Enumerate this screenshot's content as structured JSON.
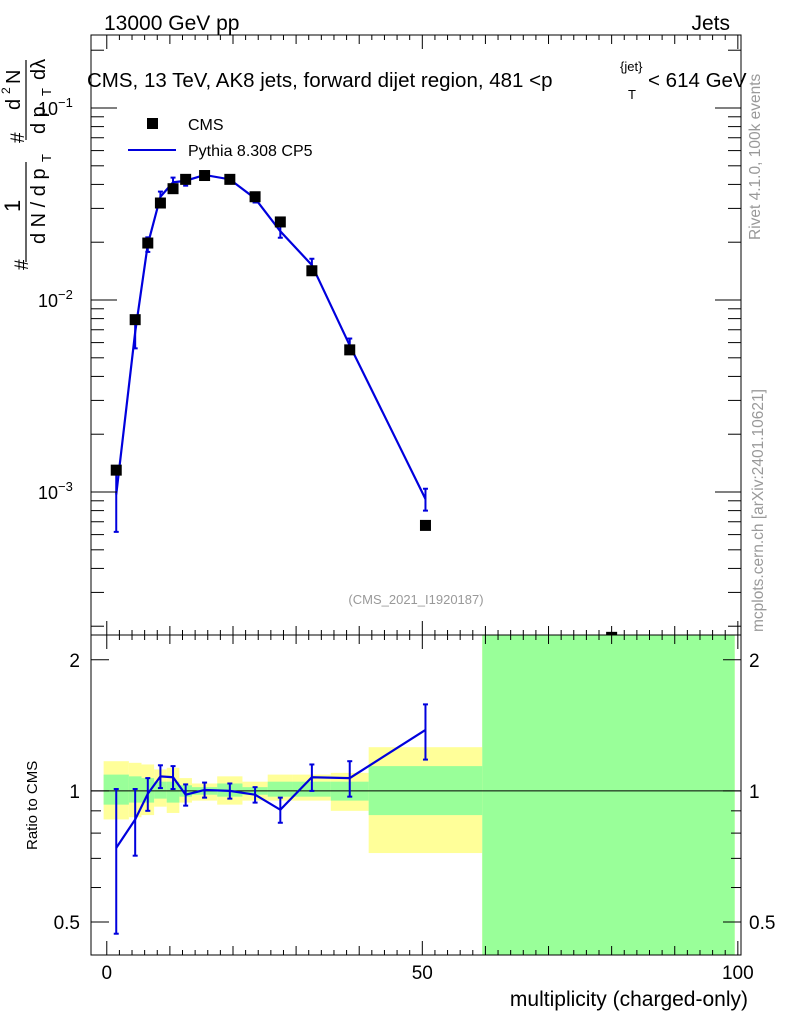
{
  "header": {
    "left": "13000 GeV pp",
    "right": "Jets"
  },
  "side": {
    "rivet": "Rivet 4.1.0,  100k events",
    "mcplots": "mcplots.cern.ch [arXiv:2401.10621]"
  },
  "colors": {
    "mc": "#0000dd",
    "data": "#000000",
    "band_stat": "#99ff99",
    "band_total": "#ffff99"
  },
  "chart_data": [
    {
      "type": "scatter",
      "title": "CMS, 13 TeV, AK8 jets, forward dijet region, 481 <p_T^{jet}< 614 GeV",
      "title_main": "CMS, 13 TeV, AK8 jets, forward dijet region, 481 <p",
      "title_sup": "{jet}",
      "title_sub": "T",
      "title_tail": "< 614 GeV",
      "ylabel_parts": [
        "#",
        "1",
        "d N / d p",
        "T",
        "#",
        "d p",
        "T",
        "d",
        "N",
        "2",
        "dλ"
      ],
      "yscale": "log",
      "ylim": [
        0.00018,
        0.24
      ],
      "xlim": [
        -2.5,
        100.5
      ],
      "yticks": [
        {
          "value": 0.1,
          "base": "10",
          "exp": "−1"
        },
        {
          "value": 0.01,
          "base": "10",
          "exp": "−2"
        },
        {
          "value": 0.001,
          "base": "10",
          "exp": "−3"
        }
      ],
      "watermark": "(CMS_2021_I1920187)",
      "legend": {
        "placement": "top-left",
        "entries": [
          "CMS",
          "Pythia 8.308 CP5"
        ]
      },
      "series": [
        {
          "name": "CMS",
          "style": "markers",
          "x": [
            1.5,
            4.5,
            6.5,
            8.5,
            10.5,
            12.5,
            15.5,
            19.5,
            23.5,
            27.5,
            32.5,
            38.5,
            50.5,
            80
          ],
          "y": [
            0.0013,
            0.0079,
            0.0198,
            0.032,
            0.038,
            0.0425,
            0.0445,
            0.0425,
            0.0345,
            0.0255,
            0.0142,
            0.0055,
            0.00067,
            0.000175
          ]
        },
        {
          "name": "Pythia 8.308 CP5",
          "style": "line",
          "x": [
            1.5,
            4.5,
            6.5,
            8.5,
            10.5,
            12.5,
            15.5,
            19.5,
            23.5,
            27.5,
            32.5,
            38.5,
            50.5
          ],
          "y": [
            0.00097,
            0.0068,
            0.0195,
            0.0345,
            0.041,
            0.0418,
            0.0448,
            0.0425,
            0.0338,
            0.0228,
            0.0152,
            0.0058,
            0.00092
          ],
          "err_low": [
            0.00035,
            0.0012,
            0.0017,
            0.0022,
            0.0024,
            0.0024,
            0.0018,
            0.0017,
            0.0016,
            0.0017,
            0.0012,
            0.0005,
            0.00012
          ],
          "err_high": [
            0.00035,
            0.0012,
            0.0017,
            0.0022,
            0.0024,
            0.0024,
            0.0018,
            0.0017,
            0.0016,
            0.0017,
            0.0012,
            0.0005,
            0.00012
          ]
        }
      ]
    },
    {
      "type": "line",
      "ylabel": "Ratio to CMS",
      "xlabel": "multiplicity (charged-only)",
      "xlim": [
        -2.5,
        100.5
      ],
      "ylim": [
        0.42,
        2.28
      ],
      "xticks": [
        0,
        50,
        100
      ],
      "yticks": [
        0.5,
        1,
        2
      ],
      "reference": 1,
      "bands": [
        {
          "x0": -0.5,
          "x1": 3.5,
          "total": [
            0.86,
            1.17
          ],
          "stat": [
            0.93,
            1.09
          ]
        },
        {
          "x0": 3.5,
          "x1": 5.5,
          "total": [
            0.87,
            1.16
          ],
          "stat": [
            0.94,
            1.08
          ]
        },
        {
          "x0": 5.5,
          "x1": 7.5,
          "total": [
            0.88,
            1.15
          ],
          "stat": [
            0.94,
            1.07
          ]
        },
        {
          "x0": 7.5,
          "x1": 9.5,
          "total": [
            0.92,
            1.12
          ],
          "stat": [
            0.96,
            1.05
          ]
        },
        {
          "x0": 9.5,
          "x1": 11.5,
          "total": [
            0.89,
            1.13
          ],
          "stat": [
            0.94,
            1.05
          ]
        },
        {
          "x0": 11.5,
          "x1": 13.5,
          "total": [
            0.94,
            1.07
          ],
          "stat": [
            0.97,
            1.03
          ]
        },
        {
          "x0": 13.5,
          "x1": 17.5,
          "total": [
            0.95,
            1.04
          ],
          "stat": [
            0.98,
            1.02
          ]
        },
        {
          "x0": 17.5,
          "x1": 21.5,
          "total": [
            0.93,
            1.08
          ],
          "stat": [
            0.97,
            1.04
          ]
        },
        {
          "x0": 21.5,
          "x1": 25.5,
          "total": [
            0.95,
            1.05
          ],
          "stat": [
            0.98,
            1.02
          ]
        },
        {
          "x0": 25.5,
          "x1": 29.5,
          "total": [
            0.95,
            1.09
          ],
          "stat": [
            0.97,
            1.05
          ]
        },
        {
          "x0": 29.5,
          "x1": 35.5,
          "total": [
            0.95,
            1.09
          ],
          "stat": [
            0.97,
            1.05
          ]
        },
        {
          "x0": 35.5,
          "x1": 41.5,
          "total": [
            0.9,
            1.1
          ],
          "stat": [
            0.95,
            1.05
          ]
        },
        {
          "x0": 41.5,
          "x1": 59.5,
          "total": [
            0.72,
            1.26
          ],
          "stat": [
            0.88,
            1.14
          ]
        },
        {
          "x0": 59.5,
          "x1": 99.5,
          "total": [
            0.42,
            2.28
          ],
          "stat": [
            0.42,
            2.28
          ]
        }
      ],
      "series": [
        {
          "name": "Pythia 8.308 CP5",
          "x": [
            1.5,
            4.5,
            6.5,
            8.5,
            10.5,
            12.5,
            15.5,
            19.5,
            23.5,
            27.5,
            32.5,
            38.5,
            50.5
          ],
          "y": [
            0.74,
            0.86,
            0.985,
            1.08,
            1.075,
            0.98,
            1.005,
            1.0,
            0.98,
            0.905,
            1.075,
            1.07,
            1.38
          ],
          "err": [
            0.27,
            0.15,
            0.085,
            0.065,
            0.065,
            0.055,
            0.04,
            0.04,
            0.04,
            0.06,
            0.075,
            0.1,
            0.2
          ]
        }
      ]
    }
  ]
}
